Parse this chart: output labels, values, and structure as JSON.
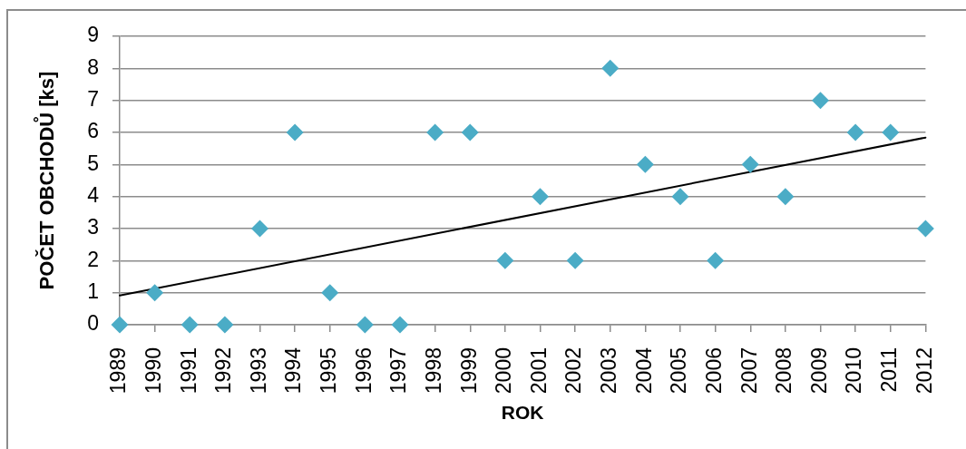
{
  "chart_data": {
    "type": "scatter",
    "xlabel": "ROK",
    "ylabel": "POČET OBCHODŮ [ks]",
    "x": [
      1989,
      1990,
      1991,
      1992,
      1993,
      1994,
      1995,
      1996,
      1997,
      1998,
      1999,
      2000,
      2001,
      2002,
      2003,
      2004,
      2005,
      2006,
      2007,
      2008,
      2009,
      2010,
      2011,
      2012
    ],
    "series": [
      {
        "color": "#4bacc6",
        "marker": "diamond",
        "values": [
          0,
          1,
          0,
          0,
          3,
          6,
          1,
          0,
          0,
          6,
          6,
          2,
          4,
          2,
          8,
          5,
          4,
          2,
          5,
          4,
          7,
          6,
          6,
          3
        ]
      },
      {
        "type": "line",
        "color": "#000000",
        "marker": "none",
        "line_style": "solid",
        "x": [
          1989,
          2012
        ],
        "values": [
          0.91,
          5.84
        ]
      }
    ],
    "xlim": [
      1989,
      2012
    ],
    "xticks": [
      1989,
      1990,
      1991,
      1992,
      1993,
      1994,
      1995,
      1996,
      1997,
      1998,
      1999,
      2000,
      2001,
      2002,
      2003,
      2004,
      2005,
      2006,
      2007,
      2008,
      2009,
      2010,
      2011,
      2012
    ],
    "ylim": [
      0,
      9
    ],
    "yticks": [
      0,
      1,
      2,
      3,
      4,
      5,
      6,
      7,
      8,
      9
    ],
    "grid": "y"
  }
}
